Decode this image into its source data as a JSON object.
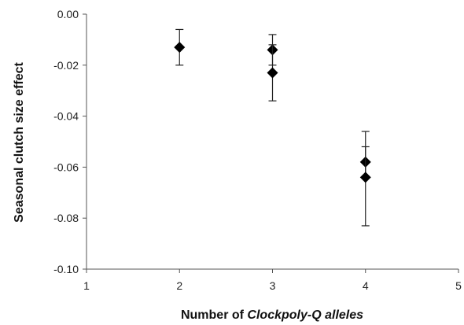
{
  "chart_data": {
    "type": "scatter",
    "xlabel_prefix": "Number of ",
    "xlabel_italic": "Clockpoly-Q alleles",
    "ylabel": "Seasonal clutch size effect",
    "xlim": [
      1,
      5
    ],
    "ylim": [
      -0.1,
      0.0
    ],
    "xticks": [
      1,
      2,
      3,
      4,
      5
    ],
    "yticks": [
      0.0,
      -0.02,
      -0.04,
      -0.06,
      -0.08,
      -0.1
    ],
    "ytick_labels": [
      "0.00",
      "-0.02",
      "-0.04",
      "-0.06",
      "-0.08",
      "-0.10"
    ],
    "grid": false,
    "marker": "diamond",
    "points": [
      {
        "x": 2,
        "y": -0.013,
        "err_low": -0.02,
        "err_high": -0.006
      },
      {
        "x": 3,
        "y": -0.014,
        "err_low": -0.02,
        "err_high": -0.008
      },
      {
        "x": 3,
        "y": -0.023,
        "err_low": -0.034,
        "err_high": -0.012
      },
      {
        "x": 4,
        "y": -0.058,
        "err_low": -0.064,
        "err_high": -0.052
      },
      {
        "x": 4,
        "y": -0.064,
        "err_low": -0.083,
        "err_high": -0.046
      }
    ]
  }
}
